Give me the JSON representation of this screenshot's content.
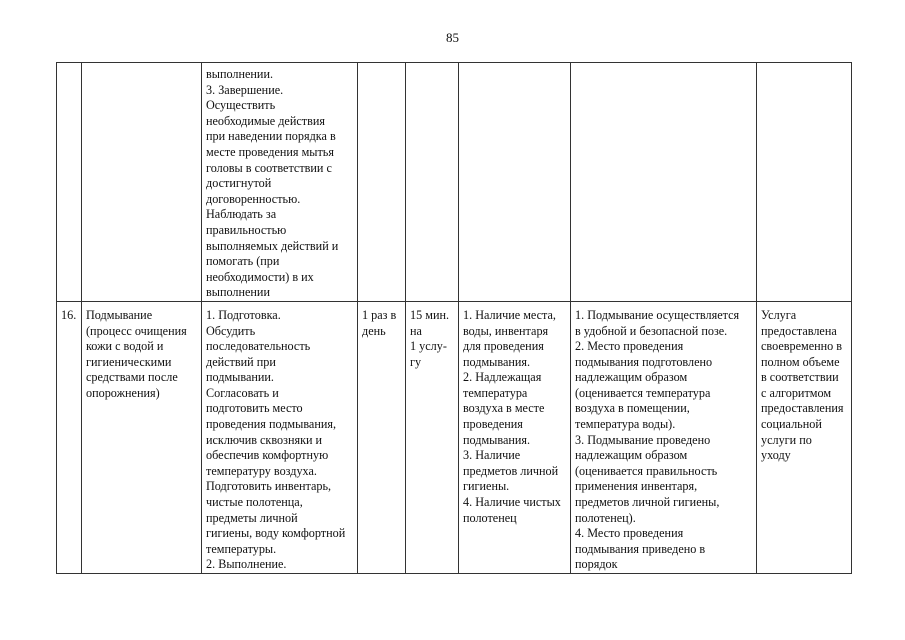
{
  "page_number": "85",
  "rows": [
    {
      "cells": [
        [],
        [],
        [
          "выполнении.",
          "3. Завершение.",
          "Осуществить",
          "необходимые действия",
          "при наведении порядка в",
          "месте проведения мытья",
          "головы в соответствии с",
          "достигнутой",
          "договоренностью.",
          "Наблюдать за",
          "правильностью",
          "выполняемых действий и",
          "помогать (при",
          "необходимости) в их",
          "выполнении"
        ],
        [],
        [],
        [],
        [],
        []
      ]
    },
    {
      "cells": [
        [
          "16."
        ],
        [
          "Подмывание",
          "(процесс очищения",
          "кожи с водой и",
          "гигиеническими",
          "средствами после",
          "опорожнения)"
        ],
        [
          "1. Подготовка.",
          "Обсудить",
          "последовательность",
          "действий при",
          "подмывании.",
          "Согласовать и",
          "подготовить место",
          "проведения подмывания,",
          "исключив сквозняки и",
          "обеспечив комфортную",
          "температуру воздуха.",
          "Подготовить инвентарь,",
          "чистые полотенца,",
          "предметы личной",
          "гигиены, воду комфортной",
          "температуры.",
          "2. Выполнение."
        ],
        [
          "1 раз в",
          "день"
        ],
        [
          "15 мин.",
          "на",
          "1 услу-",
          "гу"
        ],
        [
          "1. Наличие места,",
          "воды, инвентаря",
          "для проведения",
          "подмывания.",
          "2. Надлежащая",
          "температура",
          "воздуха в месте",
          "проведения",
          "подмывания.",
          "3. Наличие",
          "предметов личной",
          "гигиены.",
          "4. Наличие чистых",
          "полотенец"
        ],
        [
          "1. Подмывание осуществляется",
          "в удобной и безопасной позе.",
          "2. Место проведения",
          "подмывания подготовлено",
          "надлежащим образом",
          "(оценивается температура",
          "воздуха в помещении,",
          "температура воды).",
          "3. Подмывание проведено",
          "надлежащим образом",
          "(оценивается правильность",
          "применения инвентаря,",
          "предметов личной гигиены,",
          "полотенец).",
          "4. Место проведения",
          "подмывания приведено в",
          "порядок"
        ],
        [
          "Услуга",
          "предоставлена",
          "своевременно в",
          "полном объеме",
          "в соответствии",
          "с алгоритмом",
          "предоставления",
          "социальной",
          "услуги по",
          "уходу"
        ]
      ]
    }
  ]
}
